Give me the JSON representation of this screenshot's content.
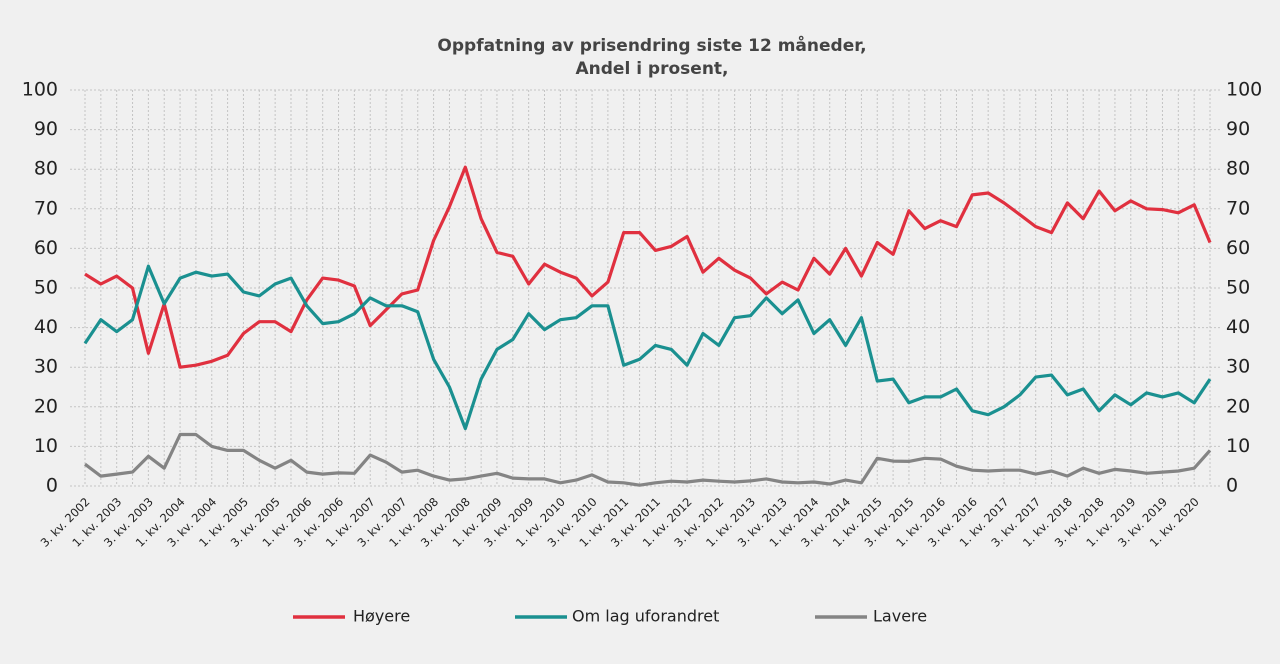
{
  "chart_data": {
    "type": "line",
    "title": [
      "Oppfatning av prisendring siste 12 måneder,",
      "Andel i prosent,"
    ],
    "categories": [
      "3. kv. 2002",
      null,
      "1. kv. 2003",
      null,
      "3. kv. 2003",
      null,
      "1. kv. 2004",
      null,
      "3. kv. 2004",
      null,
      "1. kv. 2005",
      null,
      "3. kv. 2005",
      null,
      "1. kv. 2006",
      null,
      "3. kv. 2006",
      null,
      "1. kv. 2007",
      null,
      "3. kv. 2007",
      null,
      "1. kv. 2008",
      null,
      "3. kv. 2008",
      null,
      "1. kv. 2009",
      null,
      "3. kv. 2009",
      null,
      "1. kv. 2010",
      null,
      "3. kv. 2010",
      null,
      "1. kv. 2011",
      null,
      "3. kv. 2011",
      null,
      "1. kv. 2012",
      null,
      "3. kv. 2012",
      null,
      "1. kv. 2013",
      null,
      "3. kv. 2013",
      null,
      "1. kv. 2014",
      null,
      "3. kv. 2014",
      null,
      "1. kv. 2015",
      null,
      "3. kv. 2015",
      null,
      "1. kv. 2016",
      null,
      "3. kv. 2016",
      null,
      "1. kv. 2017",
      null,
      "3. kv. 2017",
      null,
      "1. kv. 2018",
      null,
      "3. kv. 2018",
      null,
      "1. kv. 2019",
      null,
      "3. kv. 2019",
      null,
      "1. kv. 2020",
      null
    ],
    "series": [
      {
        "name": "Høyere",
        "color": "#e0303f",
        "values": [
          53.5,
          51,
          53,
          50,
          33.5,
          46,
          30,
          30.5,
          31.5,
          33,
          38.5,
          41.5,
          41.5,
          39,
          47,
          52.5,
          52,
          50.5,
          40.5,
          44.5,
          48.5,
          49.5,
          62,
          70.5,
          80.5,
          67.5,
          59,
          58,
          51,
          56,
          54,
          52.5,
          48,
          51.5,
          64,
          64,
          59.5,
          60.5,
          63,
          54,
          57.5,
          54.5,
          52.5,
          48.5,
          51.5,
          49.5,
          57.5,
          53.5,
          60,
          53,
          61.5,
          58.5,
          69.5,
          65,
          67,
          65.5,
          73.5,
          74,
          71.5,
          68.5,
          65.5,
          64,
          71.5,
          67.5,
          74.5,
          69.5,
          72,
          70,
          69.8,
          69,
          71,
          61.5
        ]
      },
      {
        "name": "Om lag uforandret",
        "color": "#1a9090",
        "values": [
          36,
          42,
          39,
          42,
          55.5,
          46,
          52.5,
          54,
          53,
          53.5,
          49,
          48,
          51,
          52.5,
          45.5,
          41,
          41.5,
          43.5,
          47.5,
          45.5,
          45.5,
          44,
          32,
          25,
          14.5,
          27,
          34.5,
          37,
          43.5,
          39.5,
          42,
          42.5,
          45.5,
          45.5,
          30.5,
          32,
          35.5,
          34.5,
          30.5,
          38.5,
          35.5,
          42.5,
          43,
          47.5,
          43.5,
          47,
          38.5,
          42,
          35.5,
          42.5,
          26.5,
          27,
          21,
          22.5,
          22.5,
          24.5,
          19,
          18,
          20,
          23,
          27.5,
          28,
          23,
          24.5,
          19,
          23,
          20.5,
          23.5,
          22.5,
          23.5,
          21,
          27
        ]
      },
      {
        "name": "Lavere",
        "color": "#848484",
        "values": [
          5.5,
          2.5,
          3,
          3.5,
          7.5,
          4.5,
          13,
          13,
          10,
          9,
          9,
          6.5,
          4.5,
          6.5,
          3.5,
          3,
          3.3,
          3.2,
          7.8,
          6,
          3.5,
          4,
          2.5,
          1.5,
          1.8,
          2.5,
          3.2,
          2,
          1.8,
          1.8,
          0.8,
          1.5,
          2.8,
          1,
          0.8,
          0.2,
          0.8,
          1.2,
          1,
          1.5,
          1.2,
          1,
          1.3,
          1.8,
          1,
          0.8,
          1,
          0.5,
          1.5,
          0.8,
          7,
          6.3,
          6.2,
          7,
          6.8,
          5,
          4,
          3.8,
          4,
          4,
          3,
          3.8,
          2.5,
          4.5,
          3.2,
          4.2,
          3.8,
          3.2,
          3.5,
          3.8,
          4.5,
          9
        ]
      }
    ],
    "ylim": [
      0,
      100
    ],
    "yticks": [
      0,
      10,
      20,
      30,
      40,
      50,
      60,
      70,
      80,
      90,
      100
    ],
    "grid": true
  }
}
